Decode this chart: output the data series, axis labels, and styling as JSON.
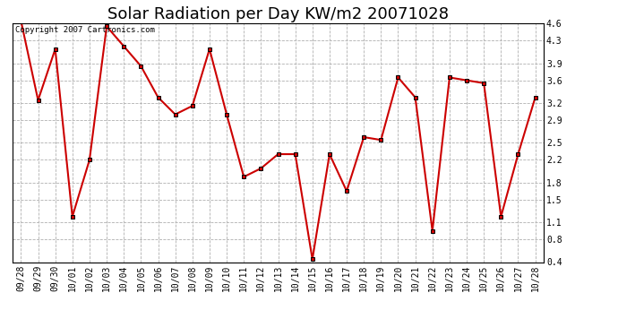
{
  "title": "Solar Radiation per Day KW/m2 20071028",
  "copyright_text": "Copyright 2007 Cartronics.com",
  "labels": [
    "09/28",
    "09/29",
    "09/30",
    "10/01",
    "10/02",
    "10/03",
    "10/04",
    "10/05",
    "10/06",
    "10/07",
    "10/08",
    "10/09",
    "10/10",
    "10/11",
    "10/12",
    "10/13",
    "10/14",
    "10/15",
    "10/16",
    "10/17",
    "10/18",
    "10/19",
    "10/20",
    "10/21",
    "10/22",
    "10/23",
    "10/24",
    "10/25",
    "10/26",
    "10/27",
    "10/28"
  ],
  "values": [
    4.65,
    3.25,
    4.15,
    1.2,
    2.2,
    4.55,
    4.2,
    3.85,
    3.3,
    3.0,
    3.15,
    4.15,
    3.0,
    1.9,
    2.05,
    2.3,
    2.3,
    0.45,
    2.3,
    1.65,
    2.6,
    2.55,
    3.65,
    3.3,
    0.95,
    3.65,
    3.6,
    3.55,
    1.2,
    2.3,
    3.3
  ],
  "line_color": "#cc0000",
  "marker_color": "#000000",
  "marker_face": "#cc0000",
  "bg_color": "#ffffff",
  "grid_color": "#b0b0b0",
  "ylim": [
    0.4,
    4.6
  ],
  "yticks": [
    0.4,
    0.8,
    1.1,
    1.5,
    1.8,
    2.2,
    2.5,
    2.9,
    3.2,
    3.6,
    3.9,
    4.3,
    4.6
  ],
  "title_fontsize": 13,
  "tick_fontsize": 7,
  "copyright_fontsize": 6.5,
  "fig_width": 6.9,
  "fig_height": 3.75,
  "dpi": 100
}
